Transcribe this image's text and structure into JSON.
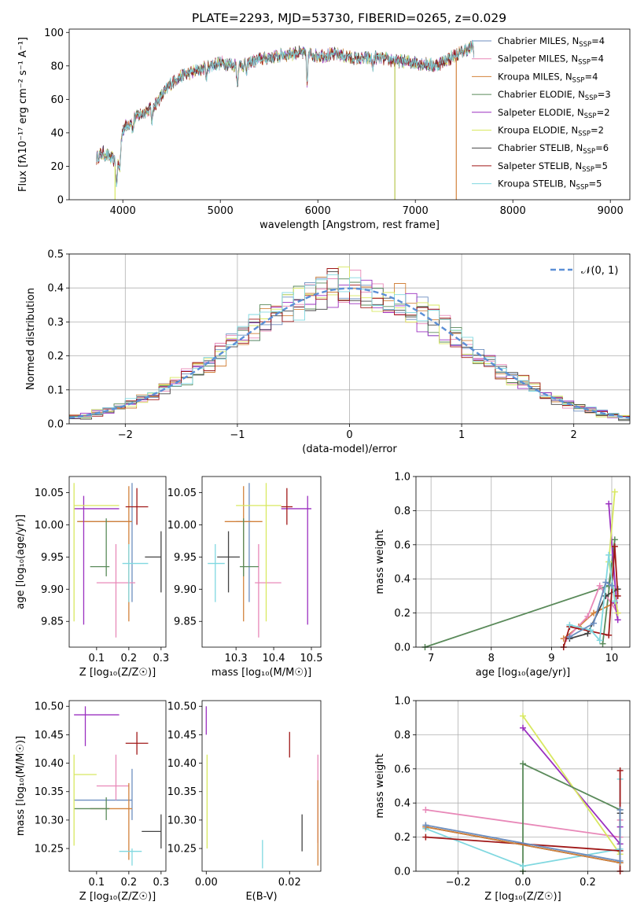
{
  "figure": {
    "title": "PLATE=2293, MJD=53730, FIBERID=0265, z=0.029"
  },
  "chart_data": [
    {
      "id": "spectrum",
      "type": "line",
      "xlabel": "wavelength [Angstrom, rest frame]",
      "ylabel": "Flux [fλ10⁻¹⁷ erg cm⁻² s⁻¹ A⁻¹]",
      "xlim": [
        3450,
        9200
      ],
      "ylim": [
        0,
        102
      ],
      "xticks": [
        4000,
        5000,
        6000,
        7000,
        8000,
        9000
      ],
      "yticks": [
        0,
        20,
        40,
        60,
        80,
        100
      ],
      "grid": false,
      "legend_position": "upper right",
      "x_range_data": [
        3730,
        7600
      ],
      "profile": [
        [
          3730,
          25
        ],
        [
          3800,
          28
        ],
        [
          3900,
          24
        ],
        [
          3950,
          20
        ],
        [
          4000,
          42
        ],
        [
          4100,
          48
        ],
        [
          4200,
          52
        ],
        [
          4300,
          55
        ],
        [
          4400,
          62
        ],
        [
          4500,
          70
        ],
        [
          4600,
          74
        ],
        [
          4800,
          78
        ],
        [
          5000,
          82
        ],
        [
          5200,
          80
        ],
        [
          5400,
          84
        ],
        [
          5600,
          86
        ],
        [
          5800,
          88
        ],
        [
          6000,
          86
        ],
        [
          6200,
          87
        ],
        [
          6400,
          84
        ],
        [
          6600,
          85
        ],
        [
          6800,
          83
        ],
        [
          7000,
          82
        ],
        [
          7200,
          80
        ],
        [
          7400,
          86
        ],
        [
          7600,
          92
        ]
      ],
      "series": [
        {
          "name": "Chabrier MILES, N_SSP=4",
          "legend": "Chabrier MILES, N",
          "sub": "SSP",
          "n": "=4",
          "color": "#6c8ebf"
        },
        {
          "name": "Salpeter MILES, N_SSP=4",
          "legend": "Salpeter MILES, N",
          "sub": "SSP",
          "n": "=4",
          "color": "#e888b8"
        },
        {
          "name": "Kroupa MILES, N_SSP=4",
          "legend": "Kroupa MILES, N",
          "sub": "SSP",
          "n": "=4",
          "color": "#d2823c"
        },
        {
          "name": "Chabrier ELODIE, N_SSP=3",
          "legend": "Chabrier ELODIE, N",
          "sub": "SSP",
          "n": "=3",
          "color": "#5a8a5a"
        },
        {
          "name": "Salpeter ELODIE, N_SSP=2",
          "legend": "Salpeter ELODIE, N",
          "sub": "SSP",
          "n": "=2",
          "color": "#9b30c0"
        },
        {
          "name": "Kroupa ELODIE, N_SSP=2",
          "legend": "Kroupa ELODIE, N",
          "sub": "SSP",
          "n": "=2",
          "color": "#d8e860"
        },
        {
          "name": "Chabrier STELIB, N_SSP=6",
          "legend": "Chabrier STELIB, N",
          "sub": "SSP",
          "n": "=6",
          "color": "#444444"
        },
        {
          "name": "Salpeter STELIB, N_SSP=5",
          "legend": "Salpeter STELIB, N",
          "sub": "SSP",
          "n": "=5",
          "color": "#a01818"
        },
        {
          "name": "Kroupa STELIB, N_SSP=5",
          "legend": "Kroupa STELIB, N",
          "sub": "SSP",
          "n": "=5",
          "color": "#80d8e0"
        }
      ],
      "drop_lines": [
        {
          "x": 3920,
          "from": 20,
          "color": "#d8e860"
        },
        {
          "x": 6790,
          "from": 82,
          "color": "#b8c850"
        },
        {
          "x": 7420,
          "from": 85,
          "color": "#d2823c"
        }
      ]
    },
    {
      "id": "residuals",
      "type": "area",
      "xlabel": "(data-model)/error",
      "ylabel": "Normed distribution",
      "xlim": [
        -2.5,
        2.5
      ],
      "ylim": [
        0,
        0.5
      ],
      "xticks": [
        -2,
        -1,
        0,
        1,
        2
      ],
      "yticks": [
        0.0,
        0.1,
        0.2,
        0.3,
        0.4,
        0.5
      ],
      "grid": true,
      "legend_position": "upper right",
      "reference": {
        "name": "𝒩(0, 1)",
        "color": "#5b8fd6"
      },
      "bin_width": 0.1
    },
    {
      "id": "age-vs-Z",
      "type": "scatter",
      "xlabel": "Z [log₁₀(Z/Z☉)]",
      "ylabel": "age  [log₁₀(age/yr)]",
      "xlim": [
        0.015,
        0.315
      ],
      "ylim": [
        9.81,
        10.075
      ],
      "xticks": [
        0.1,
        0.2,
        0.3
      ],
      "yticks": [
        9.85,
        9.9,
        9.95,
        10.0,
        10.05
      ],
      "grid": false,
      "points": [
        {
          "color": "#6c8ebf",
          "x": 0.21,
          "xerr": [
            0.04,
            0.21
          ],
          "y": 10.005,
          "yerr": [
            9.88,
            10.065
          ]
        },
        {
          "color": "#e888b8",
          "x": 0.16,
          "xerr": [
            0.1,
            0.22
          ],
          "y": 9.91,
          "yerr": [
            9.825,
            9.97
          ]
        },
        {
          "color": "#d2823c",
          "x": 0.2,
          "xerr": [
            0.04,
            0.21
          ],
          "y": 10.005,
          "yerr": [
            9.85,
            10.06
          ]
        },
        {
          "color": "#5a8a5a",
          "x": 0.13,
          "xerr": [
            0.08,
            0.14
          ],
          "y": 9.935,
          "yerr": [
            9.92,
            10.01
          ]
        },
        {
          "color": "#9b30c0",
          "x": 0.06,
          "xerr": [
            0.03,
            0.17
          ],
          "y": 10.025,
          "yerr": [
            9.845,
            10.045
          ]
        },
        {
          "color": "#d8e860",
          "x": 0.03,
          "xerr": [
            0.03,
            0.17
          ],
          "y": 10.03,
          "yerr": [
            9.85,
            10.065
          ]
        },
        {
          "color": "#444444",
          "x": 0.3,
          "xerr": [
            0.25,
            0.3
          ],
          "y": 9.95,
          "yerr": [
            9.895,
            9.99
          ]
        },
        {
          "color": "#a01818",
          "x": 0.225,
          "xerr": [
            0.19,
            0.26
          ],
          "y": 10.028,
          "yerr": [
            10.0,
            10.057
          ]
        },
        {
          "color": "#80d8e0",
          "x": 0.2,
          "xerr": [
            0.18,
            0.26
          ],
          "y": 9.94,
          "yerr": [
            9.88,
            9.97
          ]
        }
      ]
    },
    {
      "id": "age-vs-mass",
      "type": "scatter",
      "xlabel": "mass [log₁₀(M/M☉)]",
      "ylabel": "",
      "xlim": [
        10.21,
        10.525
      ],
      "ylim": [
        9.81,
        10.075
      ],
      "xticks": [
        10.3,
        10.4,
        10.5
      ],
      "yticks": [
        9.85,
        9.9,
        9.95,
        10.0,
        10.05
      ],
      "grid": false,
      "points": [
        {
          "color": "#6c8ebf",
          "x": 10.335,
          "xerr": [
            10.3,
            10.34
          ],
          "y": 10.005,
          "yerr": [
            9.88,
            10.065
          ]
        },
        {
          "color": "#e888b8",
          "x": 10.36,
          "xerr": [
            10.35,
            10.42
          ],
          "y": 9.91,
          "yerr": [
            9.825,
            9.97
          ]
        },
        {
          "color": "#d2823c",
          "x": 10.32,
          "xerr": [
            10.27,
            10.37
          ],
          "y": 10.005,
          "yerr": [
            9.85,
            10.06
          ]
        },
        {
          "color": "#5a8a5a",
          "x": 10.32,
          "xerr": [
            10.31,
            10.36
          ],
          "y": 9.935,
          "yerr": [
            9.92,
            10.01
          ]
        },
        {
          "color": "#9b30c0",
          "x": 10.49,
          "xerr": [
            10.42,
            10.5
          ],
          "y": 10.025,
          "yerr": [
            9.845,
            10.045
          ]
        },
        {
          "color": "#d8e860",
          "x": 10.38,
          "xerr": [
            10.3,
            10.42
          ],
          "y": 10.03,
          "yerr": [
            9.85,
            10.065
          ]
        },
        {
          "color": "#444444",
          "x": 10.28,
          "xerr": [
            10.25,
            10.31
          ],
          "y": 9.95,
          "yerr": [
            9.895,
            9.99
          ]
        },
        {
          "color": "#a01818",
          "x": 10.435,
          "xerr": [
            10.42,
            10.45
          ],
          "y": 10.028,
          "yerr": [
            10.0,
            10.057
          ]
        },
        {
          "color": "#80d8e0",
          "x": 10.245,
          "xerr": [
            10.225,
            10.27
          ],
          "y": 9.94,
          "yerr": [
            9.88,
            9.97
          ]
        }
      ]
    },
    {
      "id": "massweight-vs-age",
      "type": "line",
      "xlabel": "age  [log₁₀(age/yr)]",
      "ylabel": "mass weight",
      "xlim": [
        6.75,
        10.3
      ],
      "ylim": [
        0,
        1
      ],
      "xticks": [
        7,
        8,
        9,
        10
      ],
      "yticks": [
        0.0,
        0.2,
        0.4,
        0.6,
        0.8,
        1.0
      ],
      "grid": true,
      "series": [
        {
          "color": "#5a8a5a",
          "x": [
            6.9,
            9.95,
            10.05,
            9.85
          ],
          "y": [
            0.0,
            0.36,
            0.63,
            0.02
          ]
        },
        {
          "color": "#d2823c",
          "x": [
            9.2,
            9.45,
            9.7,
            10.05
          ],
          "y": [
            0.05,
            0.12,
            0.2,
            0.26
          ]
        },
        {
          "color": "#e888b8",
          "x": [
            9.25,
            9.6,
            9.8,
            10.1
          ],
          "y": [
            0.05,
            0.18,
            0.36,
            0.2
          ]
        },
        {
          "color": "#9b30c0",
          "x": [
            9.95,
            10.1,
            10.05
          ],
          "y": [
            0.84,
            0.16,
            0.26
          ]
        },
        {
          "color": "#d8e860",
          "x": [
            10.05,
            9.95,
            10.1
          ],
          "y": [
            0.91,
            0.5,
            0.2
          ]
        },
        {
          "color": "#444444",
          "x": [
            9.3,
            9.6,
            9.9,
            10.1
          ],
          "y": [
            0.05,
            0.08,
            0.3,
            0.34
          ]
        },
        {
          "color": "#a01818",
          "x": [
            9.2,
            9.3,
            9.95,
            10.05,
            10.1
          ],
          "y": [
            0.0,
            0.12,
            0.07,
            0.59,
            0.3
          ]
        },
        {
          "color": "#80d8e0",
          "x": [
            9.3,
            9.65,
            9.8,
            9.95,
            10.05
          ],
          "y": [
            0.13,
            0.1,
            0.04,
            0.54,
            0.27
          ]
        },
        {
          "color": "#6c8ebf",
          "x": [
            9.3,
            9.7,
            9.9,
            10.0
          ],
          "y": [
            0.06,
            0.14,
            0.38,
            0.36
          ]
        }
      ]
    },
    {
      "id": "mass-vs-Z",
      "type": "scatter",
      "xlabel": "Z [log₁₀(Z/Z☉)]",
      "ylabel": "mass [log₁₀(M/M☉)]",
      "xlim": [
        0.015,
        0.315
      ],
      "ylim": [
        10.21,
        10.51
      ],
      "xticks": [
        0.1,
        0.2,
        0.3
      ],
      "yticks": [
        10.25,
        10.3,
        10.35,
        10.4,
        10.45,
        10.5
      ],
      "grid": false,
      "points": [
        {
          "color": "#6c8ebf",
          "x": 0.21,
          "xerr": [
            0.03,
            0.21
          ],
          "y": 10.335,
          "yerr": [
            10.3,
            10.39
          ]
        },
        {
          "color": "#e888b8",
          "x": 0.16,
          "xerr": [
            0.1,
            0.2
          ],
          "y": 10.36,
          "yerr": [
            10.335,
            10.415
          ]
        },
        {
          "color": "#d2823c",
          "x": 0.2,
          "xerr": [
            0.08,
            0.21
          ],
          "y": 10.32,
          "yerr": [
            10.23,
            10.365
          ]
        },
        {
          "color": "#5a8a5a",
          "x": 0.13,
          "xerr": [
            0.03,
            0.14
          ],
          "y": 10.32,
          "yerr": [
            10.3,
            10.34
          ]
        },
        {
          "color": "#9b30c0",
          "x": 0.065,
          "xerr": [
            0.03,
            0.17
          ],
          "y": 10.485,
          "yerr": [
            10.43,
            10.5
          ]
        },
        {
          "color": "#d8e860",
          "x": 0.03,
          "xerr": [
            0.03,
            0.1
          ],
          "y": 10.38,
          "yerr": [
            10.255,
            10.415
          ]
        },
        {
          "color": "#444444",
          "x": 0.3,
          "xerr": [
            0.24,
            0.3
          ],
          "y": 10.28,
          "yerr": [
            10.25,
            10.31
          ]
        },
        {
          "color": "#a01818",
          "x": 0.225,
          "xerr": [
            0.19,
            0.26
          ],
          "y": 10.435,
          "yerr": [
            10.415,
            10.455
          ]
        },
        {
          "color": "#80d8e0",
          "x": 0.21,
          "xerr": [
            0.17,
            0.24
          ],
          "y": 10.245,
          "yerr": [
            10.22,
            10.25
          ]
        }
      ]
    },
    {
      "id": "mass-vs-EBV",
      "type": "scatter",
      "xlabel": "E(B-V)",
      "ylabel": "",
      "xlim": [
        -0.001,
        0.0275
      ],
      "ylim": [
        10.21,
        10.51
      ],
      "xticks": [
        0.0,
        0.02
      ],
      "yticks": [
        10.25,
        10.3,
        10.35,
        10.4,
        10.45,
        10.5
      ],
      "grid": false,
      "points": [
        {
          "color": "#9b30c0",
          "x": 0.0,
          "y": 10.485,
          "yerr": [
            10.45,
            10.5
          ]
        },
        {
          "color": "#d8e860",
          "x": 0.0002,
          "y": 10.38,
          "yerr": [
            10.25,
            10.415
          ]
        },
        {
          "color": "#a01818",
          "x": 0.02,
          "y": 10.435,
          "yerr": [
            10.41,
            10.455
          ]
        },
        {
          "color": "#e888b8",
          "x": 0.0268,
          "y": 10.36,
          "yerr": [
            10.26,
            10.415
          ]
        },
        {
          "color": "#d2823c",
          "x": 0.0268,
          "y": 10.32,
          "yerr": [
            10.22,
            10.37
          ]
        },
        {
          "color": "#444444",
          "x": 0.023,
          "y": 10.28,
          "yerr": [
            10.245,
            10.31
          ]
        },
        {
          "color": "#80d8e0",
          "x": 0.0135,
          "y": 10.245,
          "yerr": [
            10.215,
            10.265
          ]
        }
      ]
    },
    {
      "id": "massweight-vs-Z",
      "type": "line",
      "xlabel": "Z [log₁₀(Z/Z☉)]",
      "ylabel": "mass weight",
      "xlim": [
        -0.33,
        0.33
      ],
      "ylim": [
        0,
        1
      ],
      "xticks": [
        -0.2,
        0.0,
        0.2
      ],
      "yticks": [
        0.0,
        0.2,
        0.4,
        0.6,
        0.8,
        1.0
      ],
      "grid": true,
      "series": [
        {
          "color": "#e888b8",
          "x": [
            -0.3,
            0.3,
            0.3
          ],
          "y": [
            0.36,
            0.2,
            0.3
          ]
        },
        {
          "color": "#9b30c0",
          "x": [
            0.0,
            0.3,
            0.3
          ],
          "y": [
            0.84,
            0.16,
            0.26
          ]
        },
        {
          "color": "#d8e860",
          "x": [
            0.0,
            0.3
          ],
          "y": [
            0.91,
            0.1
          ]
        },
        {
          "color": "#5a8a5a",
          "x": [
            0.0,
            0.0,
            0.3
          ],
          "y": [
            0.0,
            0.63,
            0.36
          ]
        },
        {
          "color": "#80d8e0",
          "x": [
            -0.3,
            0.0,
            0.3,
            0.3
          ],
          "y": [
            0.25,
            0.03,
            0.13,
            0.54
          ]
        },
        {
          "color": "#a01818",
          "x": [
            -0.3,
            0.3,
            0.3,
            0.3
          ],
          "y": [
            0.2,
            0.12,
            0.59,
            0.0
          ]
        },
        {
          "color": "#444444",
          "x": [
            -0.3,
            0.3,
            0.3
          ],
          "y": [
            0.26,
            0.05,
            0.34
          ]
        },
        {
          "color": "#d2823c",
          "x": [
            -0.3,
            0.3
          ],
          "y": [
            0.26,
            0.05
          ]
        },
        {
          "color": "#6c8ebf",
          "x": [
            -0.3,
            0.3,
            0.3
          ],
          "y": [
            0.27,
            0.06,
            0.36
          ]
        }
      ]
    }
  ]
}
